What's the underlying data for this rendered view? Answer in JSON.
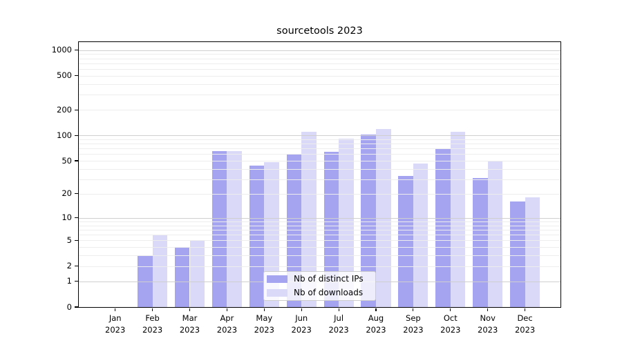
{
  "title": "sourcetools 2023",
  "chart_data": {
    "type": "bar",
    "title": "sourcetools 2023",
    "categories": [
      "Jan",
      "Feb",
      "Mar",
      "Apr",
      "May",
      "Jun",
      "Jul",
      "Aug",
      "Sep",
      "Oct",
      "Nov",
      "Dec"
    ],
    "category_year": "2023",
    "x_tick_labels": [
      "Jan 2023",
      "Feb 2023",
      "Mar 2023",
      "Apr 2023",
      "May 2023",
      "Jun 2023",
      "Jul 2023",
      "Aug 2023",
      "Sep 2023",
      "Oct 2023",
      "Nov 2023",
      "Dec 2023"
    ],
    "series": [
      {
        "name": "Nb of distinct IPs",
        "color": "#a4a4f1",
        "values": [
          0,
          3,
          4,
          65,
          44,
          60,
          64,
          103,
          33,
          70,
          31,
          16
        ]
      },
      {
        "name": "Nb of downloads",
        "color": "#dadaf8",
        "values": [
          0,
          6,
          5,
          65,
          48,
          110,
          91,
          118,
          46,
          110,
          50,
          18
        ]
      }
    ],
    "xlabel": "",
    "ylabel": "",
    "yscale": "log1p",
    "ylim": [
      0,
      1238
    ],
    "y_ticks": [
      1000,
      500,
      200,
      100,
      50,
      20,
      10,
      5,
      2,
      1,
      0
    ],
    "grid_major": [
      1,
      10,
      100,
      1000
    ],
    "grid_minor": [
      2,
      3,
      4,
      5,
      6,
      7,
      8,
      9,
      20,
      30,
      40,
      50,
      60,
      70,
      80,
      90,
      200,
      300,
      400,
      500,
      600,
      700,
      800,
      900
    ],
    "grid_on": true,
    "legend_position": "lower center"
  },
  "colors": {
    "bar_dark": "#a4a4f1",
    "bar_light": "#dadaf8",
    "grid_minor": "#ededed",
    "grid_major": "#cfcfcf",
    "axis": "#000000",
    "legend_border": "#cccccc"
  }
}
